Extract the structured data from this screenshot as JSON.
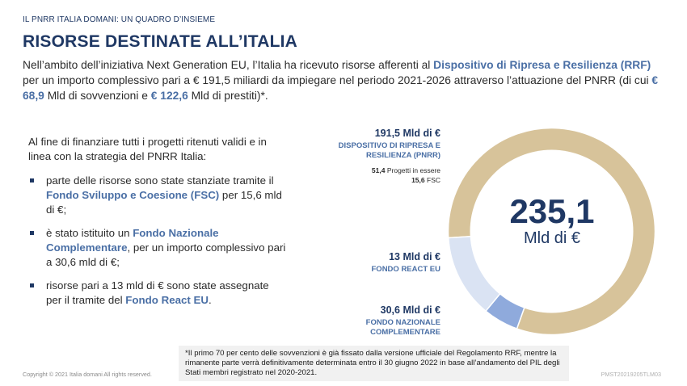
{
  "header": {
    "kicker": "IL PNRR ITALIA DOMANI: UN QUADRO D’INSIEME",
    "title": "RISORSE DESTINATE ALL’ITALIA"
  },
  "intro": {
    "t1": "Nell’ambito dell’iniziativa Next Generation EU, l’Italia ha ricevuto risorse afferenti al ",
    "h1": "Dispositivo di Ripresa e Resilienza (RRF)",
    "t2": " per un importo complessivo pari a € 191,5 miliardi da impiegare nel periodo 2021-2026 attraverso l’attuazione del PNRR (di cui ",
    "h2": "€ 68,9",
    "t3": " Mld di sovvenzioni e ",
    "h3": "€ 122,6",
    "t4": " Mld di prestiti)*."
  },
  "left": {
    "lead": "Al fine di finanziare tutti i progetti ritenuti validi e in linea con la strategia del PNRR Italia:",
    "b1_a": "parte delle risorse sono state stanziate tramite il ",
    "b1_h": "Fondo Sviluppo e Coesione (FSC)",
    "b1_b": " per 15,6 mld di €;",
    "b2_a": "è stato istituito un ",
    "b2_h": "Fondo Nazionale Complementare",
    "b2_b": ", per un importo complessivo pari a 30,6 mld di €;",
    "b3_a": "risorse pari a 13 mld di € sono state assegnate per il tramite del ",
    "b3_h": "Fondo React EU",
    "b3_b": "."
  },
  "chart_data": {
    "type": "pie",
    "center_value": "235,1",
    "center_unit": "Mld di €",
    "slices": [
      {
        "amount": "191,5 Mld di €",
        "name": "DISPOSITIVO DI RIPRESA E RESILIENZA (PNRR)",
        "value": 191.5,
        "color": "#d7c39a"
      },
      {
        "amount": "13 Mld di €",
        "name": "FONDO REACT EU",
        "value": 13,
        "color": "#8faadc"
      },
      {
        "amount": "30,6 Mld di €",
        "name": "FONDO NAZIONALE COMPLEMENTARE",
        "value": 30.6,
        "color": "#dae3f3"
      }
    ],
    "rrf_detail": {
      "progetti_num": "51,4",
      "progetti_text": "Progetti in essere",
      "fsc_num": "15,6",
      "fsc_text": "FSC"
    }
  },
  "footnote": "*Il primo 70 per cento delle sovvenzioni è già fissato dalla versione ufficiale del Regolamento RRF, mentre la rimanente parte verrà definitivamente determinata entro il 30 giugno 2022 in base all’andamento del PIL degli Stati membri registrato nel 2020-2021.",
  "footer": {
    "copyright": "Copyright © 2021 Italia domani  All rights reserved.",
    "code": "PMST20219205TLM03"
  }
}
